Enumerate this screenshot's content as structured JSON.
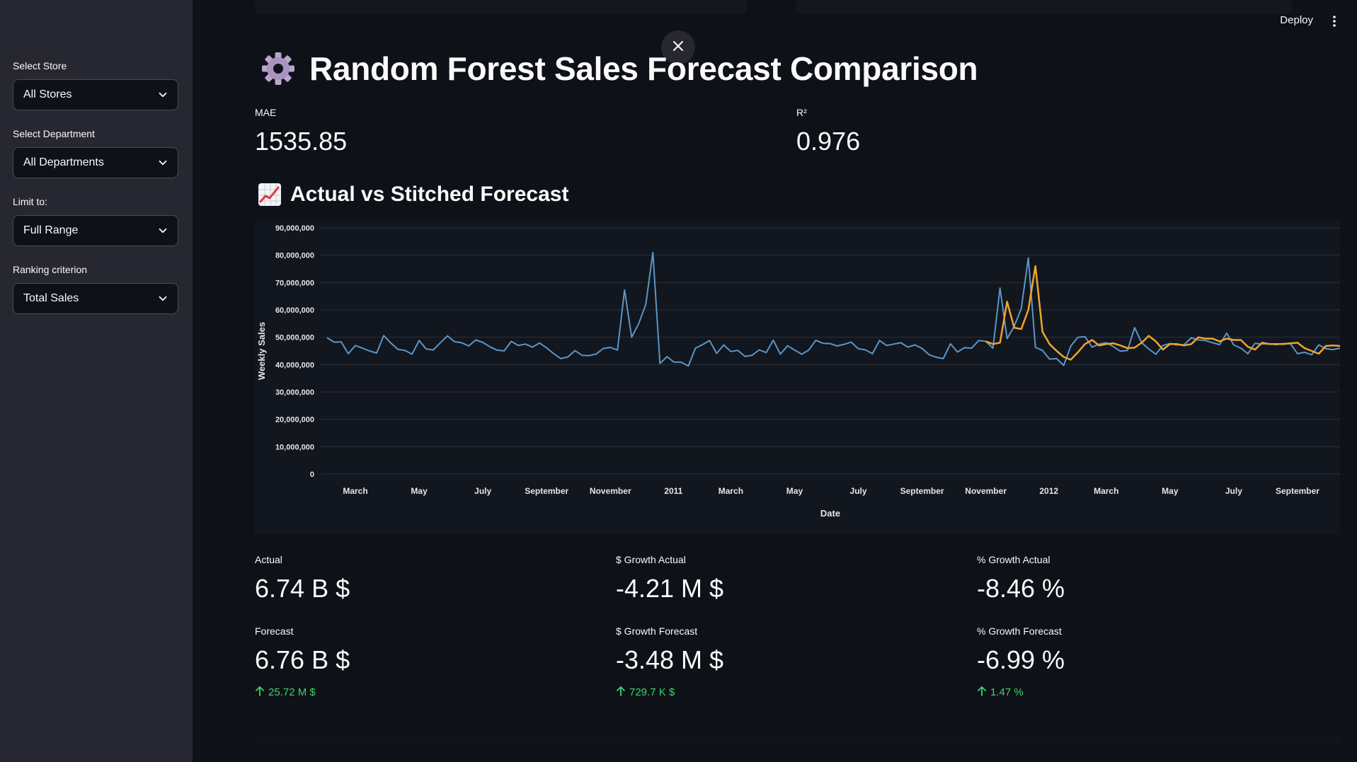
{
  "header": {
    "deploy_label": "Deploy",
    "close_icon": "close-icon",
    "menu_icon": "kebab-menu-icon"
  },
  "sidebar": {
    "fields": [
      {
        "label": "Select Store",
        "value": "All Stores"
      },
      {
        "label": "Select Department",
        "value": "All Departments"
      },
      {
        "label": "Limit to:",
        "value": "Full Range"
      },
      {
        "label": "Ranking criterion",
        "value": "Total Sales"
      }
    ]
  },
  "page": {
    "title": "Random Forest Sales Forecast Comparison",
    "title_icon": "gear-icon",
    "subtitle": "Actual vs Stitched Forecast",
    "subtitle_icon": "chart-increasing-icon"
  },
  "metrics_top": [
    {
      "label": "MAE",
      "value": "1535.85"
    },
    {
      "label": "R²",
      "value": "0.976"
    }
  ],
  "metrics_bottom": [
    {
      "label": "Actual",
      "value": "6.74 B $",
      "delta": ""
    },
    {
      "label": "$ Growth Actual",
      "value": "-4.21 M $",
      "delta": ""
    },
    {
      "label": "% Growth Actual",
      "value": "-8.46 %",
      "delta": ""
    },
    {
      "label": "Forecast",
      "value": "6.76 B $",
      "delta": "25.72 M $"
    },
    {
      "label": "$ Growth Forecast",
      "value": "-3.48 M $",
      "delta": "729.7 K $"
    },
    {
      "label": "% Growth Forecast",
      "value": "-6.99 %",
      "delta": "1.47 %"
    }
  ],
  "colors": {
    "actual_line": "#5a96c8",
    "forecast_line": "#f0a52a",
    "delta_positive": "#3dd56d",
    "grid": "#2b3039"
  },
  "chart_data": {
    "type": "line",
    "xlabel": "Date",
    "ylabel": "Weekly Sales",
    "ylim": [
      0,
      90000000
    ],
    "y_ticks": [
      "0",
      "10,000,000",
      "20,000,000",
      "30,000,000",
      "40,000,000",
      "50,000,000",
      "60,000,000",
      "70,000,000",
      "80,000,000",
      "90,000,000"
    ],
    "x_ticks": [
      "March",
      "May",
      "July",
      "September",
      "November",
      "2011",
      "March",
      "May",
      "July",
      "September",
      "November",
      "2012",
      "March",
      "May",
      "July",
      "September"
    ],
    "x_tick_positions": [
      4,
      13,
      22,
      31,
      40,
      48.9,
      57,
      66,
      75,
      84,
      93,
      101.9,
      110,
      119,
      128,
      137
    ],
    "grid": true,
    "legend": "none",
    "series": [
      {
        "start_index": 0,
        "values": [
          49.8,
          48.2,
          48.3,
          44.0,
          47.0,
          46.0,
          45.0,
          44.2,
          50.6,
          47.9,
          45.6,
          45.2,
          43.8,
          48.8,
          45.7,
          45.4,
          48.0,
          50.5,
          48.4,
          48.0,
          46.8,
          49.0,
          48.1,
          46.5,
          45.3,
          45.0,
          48.5,
          47.0,
          47.5,
          46.4,
          47.9,
          46.1,
          44.0,
          42.2,
          42.8,
          45.1,
          43.4,
          43.3,
          43.9,
          45.9,
          46.3,
          45.3,
          67.3,
          50.0,
          55.0,
          62.0,
          81.0,
          40.4,
          42.9,
          40.9,
          40.9,
          39.5,
          46.0,
          47.3,
          48.8,
          44.1,
          47.2,
          44.8,
          45.2,
          43.0,
          43.4,
          45.4,
          44.4,
          48.9,
          43.8,
          46.9,
          45.3,
          43.8,
          45.3,
          48.9,
          47.8,
          47.7,
          46.8,
          47.4,
          48.2,
          45.8,
          45.4,
          44.0,
          48.8,
          47.0,
          47.5,
          48.0,
          46.4,
          47.2,
          45.9,
          43.6,
          42.7,
          42.2,
          47.6,
          44.6,
          46.2,
          46.0,
          48.8,
          48.5,
          46.0,
          68.0,
          49.5,
          54.0,
          60.5,
          79.0,
          46.3,
          45.2,
          42.0,
          42.2,
          39.7,
          46.8,
          50.0,
          50.2,
          46.4,
          47.5,
          48.0,
          46.6,
          44.9,
          45.2,
          53.5,
          48.0,
          45.7,
          43.8,
          47.0,
          47.7,
          47.2,
          47.3,
          49.8,
          49.0,
          48.8,
          48.0,
          47.3,
          51.5,
          47.2,
          46.0,
          44.0,
          47.8,
          47.5,
          47.6,
          47.3,
          47.7,
          47.6,
          44.0,
          44.5,
          43.6,
          47.2,
          45.8,
          45.5,
          46.0
        ]
      },
      {
        "start_index": 93,
        "values": [
          48.5,
          47.5,
          48.0,
          63.0,
          53.5,
          53.0,
          60.0,
          76.0,
          52.0,
          47.5,
          45.0,
          42.8,
          41.8,
          44.5,
          47.5,
          49.0,
          47.0,
          47.5,
          47.8,
          47.0,
          46.0,
          46.2,
          48.0,
          50.5,
          48.5,
          45.5,
          47.5,
          47.5,
          47.0,
          47.5,
          50.0,
          49.5,
          49.5,
          48.5,
          49.5,
          49.0,
          49.0,
          46.5,
          45.5,
          48.0,
          47.5,
          47.5,
          47.5,
          47.8,
          48.0,
          46.0,
          45.0,
          44.0,
          46.8,
          47.0,
          46.8,
          46.5
        ]
      }
    ]
  }
}
